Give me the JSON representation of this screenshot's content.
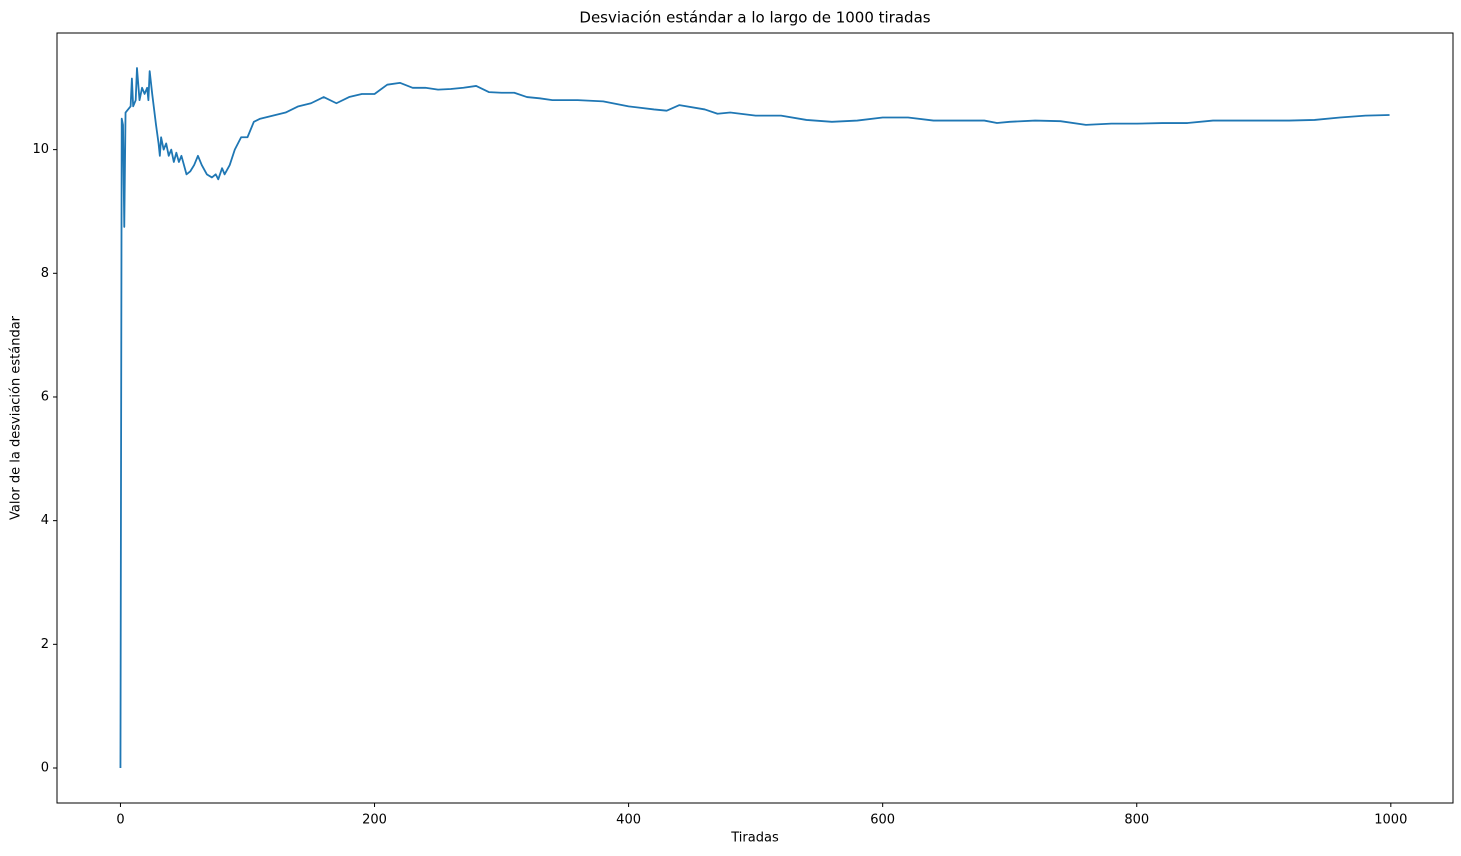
{
  "chart_data": {
    "type": "line",
    "title": "Desviación estándar a lo largo de 1000 tiradas",
    "xlabel": "Tiradas",
    "ylabel": "Valor de la desviación estándar",
    "color": "#1f77b4",
    "x": [
      0,
      1,
      2,
      3,
      4,
      6,
      8,
      9,
      10,
      12,
      13,
      15,
      17,
      19,
      21,
      22,
      23,
      25,
      28,
      30,
      31,
      32,
      34,
      36,
      38,
      40,
      42,
      44,
      46,
      48,
      52,
      55,
      58,
      61,
      64,
      68,
      72,
      75,
      77,
      80,
      82,
      86,
      90,
      95,
      100,
      105,
      110,
      120,
      130,
      140,
      150,
      160,
      170,
      180,
      190,
      200,
      210,
      220,
      230,
      240,
      250,
      260,
      270,
      280,
      290,
      300,
      310,
      320,
      330,
      340,
      360,
      380,
      400,
      420,
      430,
      440,
      460,
      470,
      480,
      500,
      520,
      540,
      560,
      580,
      600,
      620,
      640,
      660,
      680,
      690,
      700,
      720,
      740,
      760,
      780,
      800,
      820,
      840,
      860,
      880,
      900,
      920,
      940,
      960,
      980,
      999
    ],
    "y": [
      0,
      10.5,
      10.4,
      8.75,
      10.6,
      10.65,
      10.7,
      11.15,
      10.7,
      10.8,
      11.32,
      10.8,
      11.0,
      10.9,
      11.0,
      10.8,
      11.27,
      10.9,
      10.4,
      10.1,
      9.9,
      10.2,
      10.0,
      10.1,
      9.9,
      10.0,
      9.8,
      9.95,
      9.8,
      9.9,
      9.6,
      9.65,
      9.75,
      9.9,
      9.75,
      9.6,
      9.55,
      9.6,
      9.52,
      9.7,
      9.6,
      9.75,
      10.0,
      10.2,
      10.2,
      10.45,
      10.5,
      10.55,
      10.6,
      10.7,
      10.75,
      10.85,
      10.75,
      10.85,
      10.9,
      10.9,
      11.05,
      11.08,
      11.0,
      11.0,
      10.97,
      10.98,
      11.0,
      11.03,
      10.93,
      10.92,
      10.92,
      10.85,
      10.83,
      10.8,
      10.8,
      10.78,
      10.7,
      10.65,
      10.63,
      10.72,
      10.65,
      10.58,
      10.6,
      10.55,
      10.55,
      10.48,
      10.45,
      10.47,
      10.52,
      10.52,
      10.47,
      10.47,
      10.47,
      10.43,
      10.45,
      10.47,
      10.46,
      10.4,
      10.42,
      10.42,
      10.43,
      10.43,
      10.47,
      10.47,
      10.47,
      10.47,
      10.48,
      10.52,
      10.55,
      10.56
    ],
    "xlim": [
      -49.95,
      1048.95
    ],
    "ylim": [
      -0.566,
      11.886
    ],
    "xticks": [
      0,
      200,
      400,
      600,
      800,
      1000
    ],
    "yticks": [
      0,
      2,
      4,
      6,
      8,
      10
    ],
    "grid": false
  }
}
